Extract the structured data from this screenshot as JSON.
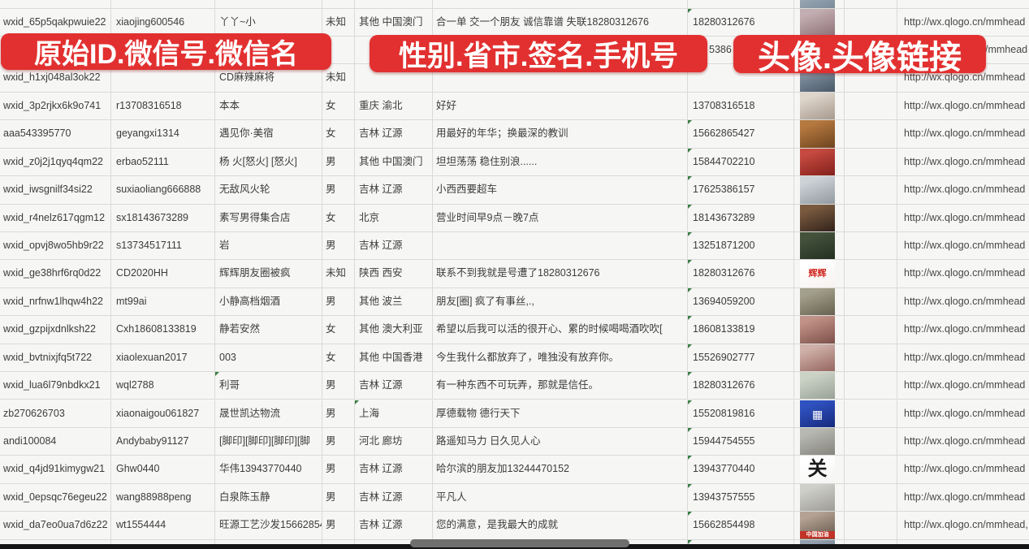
{
  "banners": {
    "b1": "原始ID.微信号.微信名",
    "b2": "性别.省市.签名.手机号",
    "b3": "头像.头像链接"
  },
  "colors": {
    "banner_red": "#e23030",
    "banner_text": "#ffffff",
    "gridline": "#dadad8",
    "sheet_bg": "#f6f6f4",
    "cell_text": "#3c3c3c",
    "error_triangle_green": "#3a7d44",
    "scrollbar_thumb": "#6f6f6f",
    "bottom_bar": "#151515"
  },
  "table": {
    "column_labels_from_banners": [
      "原始ID",
      "微信号",
      "微信名",
      "性别",
      "省市",
      "签名",
      "手机号",
      "头像",
      "头像链接"
    ],
    "rows": [
      {
        "id": "",
        "wx": "",
        "name": "",
        "gender": "",
        "region": "",
        "sig": "",
        "phone": "",
        "link": "",
        "tick": false,
        "avatar": {
          "c1": "#aab6c2",
          "c2": "#7b8b99"
        }
      },
      {
        "id": "wxid_65p5qakpwuie22",
        "wx": "xiaojing600546",
        "name": "丫丫~小",
        "gender": "未知",
        "region": "其他 中国澳门",
        "sig": "合一单 交一个朋友 诚信靠谱 失联18280312676",
        "phone": "18280312676",
        "link": "http://wx.qlogo.cn/mmhead",
        "tick": true,
        "avatar": {
          "c1": "#c2aeb2",
          "c2": "#8e7076"
        }
      },
      {
        "id": "",
        "wx": "",
        "name": "",
        "gender": "",
        "region": "",
        "sig": "",
        "phone": "5386",
        "link": "/mmhead",
        "tick": false,
        "covered": true,
        "avatar": {
          "c1": "#aebfcf",
          "c2": "#7e93a6"
        }
      },
      {
        "id": "wxid_h1xj048al3ok22",
        "wx": "",
        "name": "CD麻辣麻将",
        "gender": "未知",
        "region": "",
        "sig": "",
        "phone": "",
        "link": "http://wx.qlogo.cn/mmhead",
        "tick": false,
        "avatar": {
          "c1": "#8898a8",
          "c2": "#4a5866"
        }
      },
      {
        "id": "wxid_3p2rjkx6k9o741",
        "wx": "r13708316518",
        "name": "本本",
        "gender": "女",
        "region": "重庆 渝北",
        "sig": "好好",
        "phone": "13708316518",
        "link": "http://wx.qlogo.cn/mmhead",
        "tick": false,
        "avatar": {
          "c1": "#ded5cb",
          "c2": "#a6988c"
        }
      },
      {
        "id": "aaa543395770",
        "wx": "geyangxi1314",
        "name": "遇见你·美宿",
        "gender": "女",
        "region": "吉林 辽源",
        "sig": "用最好的年华；换最深的教训",
        "phone": "15662865427",
        "link": "http://wx.qlogo.cn/mmhead",
        "tick": true,
        "avatar": {
          "c1": "#b5793f",
          "c2": "#6e441f"
        }
      },
      {
        "id": "wxid_z0j2j1qyq4qm22",
        "wx": "erbao52111",
        "name": "杨 火[怒火] [怒火]",
        "gender": "男",
        "region": "其他 中国澳门",
        "sig": "坦坦荡荡 稳住别浪......",
        "phone": "15844702210",
        "link": "http://wx.qlogo.cn/mmhead",
        "tick": true,
        "avatar": {
          "c1": "#c64a40",
          "c2": "#801f1a"
        }
      },
      {
        "id": "wxid_iwsgnilf34si22",
        "wx": "suxiaoliang666888",
        "name": "无敌风火轮",
        "gender": "男",
        "region": "吉林 辽源",
        "sig": "小西西要超车",
        "phone": "17625386157",
        "link": "http://wx.qlogo.cn/mmhead",
        "tick": true,
        "avatar": {
          "c1": "#cdd2d6",
          "c2": "#9199a0"
        }
      },
      {
        "id": "wxid_r4nelz617qgm12",
        "wx": "sx18143673289",
        "name": "素写男得集合店",
        "gender": "女",
        "region": "北京",
        "sig": "营业时间早9点－晚7点",
        "phone": "18143673289",
        "link": "http://wx.qlogo.cn/mmhead",
        "tick": true,
        "avatar": {
          "c1": "#7a5a3f",
          "c2": "#2f211a"
        }
      },
      {
        "id": "wxid_opvj8wo5hb9r22",
        "wx": "s13734517111",
        "name": "岩",
        "gender": "男",
        "region": "吉林 辽源",
        "sig": "",
        "phone": "13251871200",
        "link": "http://wx.qlogo.cn/mmhead",
        "tick": true,
        "avatar": {
          "c1": "#44523c",
          "c2": "#222e20"
        }
      },
      {
        "id": "wxid_ge38hrf6rq0d22",
        "wx": "CD2020HH",
        "name": "辉辉朋友圈被疯",
        "gender": "未知",
        "region": "陕西 西安",
        "sig": "联系不到我就是号遭了18280312676",
        "phone": "18280312676",
        "link": "http://wx.qlogo.cn/mmhead",
        "tick": true,
        "avatar": {
          "c1": "#ffffff",
          "c2": "#f6f2f0",
          "label": "辉辉",
          "label_color": "#d02a22",
          "label_size": 11
        }
      },
      {
        "id": "wxid_nrfnw1lhqw4h22",
        "wx": "mt99ai",
        "name": "小静高档烟酒",
        "gender": "男",
        "region": "其他 波兰",
        "sig": "朋友[圈] 疯了有事丝,.,",
        "phone": "13694059200",
        "link": "http://wx.qlogo.cn/mmhead",
        "tick": true,
        "avatar": {
          "c1": "#a3a08b",
          "c2": "#64604e"
        }
      },
      {
        "id": "wxid_gzpijxdnlksh22",
        "wx": "Cxh18608133819",
        "name": "静若安然",
        "gender": "女",
        "region": "其他 澳大利亚",
        "sig": "希望以后我可以活的很开心、累的时候喝喝酒吹吹[",
        "phone": "18608133819",
        "link": "http://wx.qlogo.cn/mmhead",
        "tick": true,
        "avatar": {
          "c1": "#c09186",
          "c2": "#7c5049"
        }
      },
      {
        "id": "wxid_bvtnixjfq5t722",
        "wx": "xiaolexuan2017",
        "name": "003",
        "gender": "女",
        "region": "其他 中国香港",
        "sig": "今生我什么都放弃了，唯独没有放弃你。",
        "phone": "15526902777",
        "link": "http://wx.qlogo.cn/mmhead",
        "tick": true,
        "avatar": {
          "c1": "#cfb0a9",
          "c2": "#94655e"
        }
      },
      {
        "id": "wxid_lua6l79nbdkx21",
        "wx": "wql2788",
        "name": "利哥",
        "gender": "男",
        "region": "吉林 辽源",
        "sig": "有一种东西不可玩弄，那就是信任。",
        "phone": "18280312676",
        "link": "http://wx.qlogo.cn/mmhead",
        "tick": true,
        "name_tick": true,
        "avatar": {
          "c1": "#ccd2c6",
          "c2": "#98a196"
        }
      },
      {
        "id": "zb270626703",
        "wx": "xiaonaigou061827",
        "name": "晟世凯达物流",
        "gender": "男",
        "region": "上海",
        "sig": "厚德载物 德行天下",
        "phone": "15520819816",
        "link": "http://wx.qlogo.cn/mmhead",
        "tick": true,
        "region_tick": true,
        "avatar": {
          "c1": "#2f52c0",
          "c2": "#16287a",
          "label": "▦",
          "label_color": "#ffffff",
          "label_size": 14
        }
      },
      {
        "id": "andi100084",
        "wx": "Andybaby91127",
        "name": "[脚印][脚印][脚印][脚",
        "gender": "男",
        "region": "河北 廊坊",
        "sig": "路遥知马力 日久见人心",
        "phone": "15944754555",
        "link": "http://wx.qlogo.cn/mmhead",
        "tick": true,
        "avatar": {
          "c1": "#b8b8b2",
          "c2": "#83837c"
        }
      },
      {
        "id": "wxid_q4jd91kimygw21",
        "wx": "Ghw0440",
        "name": "华伟13943770440",
        "gender": "男",
        "region": "吉林 辽源",
        "sig": "哈尔滨的朋友加13244470152",
        "phone": "13943770440",
        "link": "http://wx.qlogo.cn/mmhead",
        "tick": true,
        "avatar": {
          "c1": "#ffffff",
          "c2": "#f4f4f2",
          "label": "关",
          "label_color": "#1a1a1a",
          "label_size": 24
        }
      },
      {
        "id": "wxid_0epsqc76egeu22",
        "wx": "wang88988peng",
        "name": "白泉陈玉静",
        "gender": "男",
        "region": "吉林 辽源",
        "sig": "平凡人",
        "phone": "13943757555",
        "link": "http://wx.qlogo.cn/mmhead",
        "tick": true,
        "avatar": {
          "c1": "#cfcfc9",
          "c2": "#9c9c95"
        }
      },
      {
        "id": "wxid_da7eo0ua7d6z22",
        "wx": "wt1554444",
        "name": "旺源工艺沙发15662854",
        "gender": "男",
        "region": "吉林 辽源",
        "sig": "您的满意，是我最大的成就",
        "phone": "15662854498",
        "link": "http://wx.qlogo.cn/mmhead,",
        "tick": true,
        "avatar": {
          "c1": "#b4a294",
          "c2": "#5f5448",
          "strip": "中国加油"
        }
      },
      {
        "id": "",
        "wx": "",
        "name": "",
        "gender": "",
        "region": "",
        "sig": "",
        "phone": "",
        "link": "",
        "tick": true,
        "avatar": {
          "c1": "#93a0ad",
          "c2": "#4e5864"
        }
      }
    ]
  }
}
